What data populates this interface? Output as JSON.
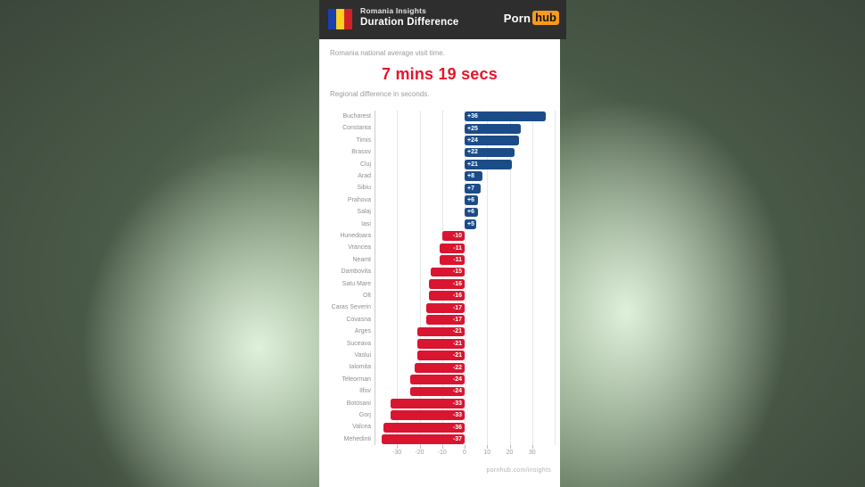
{
  "header": {
    "title_line1": "Romania Insights",
    "title_line2": "Duration Difference",
    "logo": {
      "part1": "Porn",
      "part2": "hub"
    }
  },
  "intro": {
    "line1": "Romania national average visit time.",
    "stat": "7 mins 19 secs"
  },
  "chart_data": {
    "type": "bar",
    "orientation": "horizontal",
    "title": "Regional difference in seconds.",
    "unit": "seconds",
    "categories": [
      "Bucharest",
      "Constanta",
      "Timis",
      "Brasov",
      "Cluj",
      "Arad",
      "Sibiu",
      "Prahova",
      "Salaj",
      "Iasi",
      "Hunedoara",
      "Vrancea",
      "Neamt",
      "Dambovita",
      "Satu Mare",
      "Olt",
      "Caras Severin",
      "Covasna",
      "Arges",
      "Suceava",
      "Vaslui",
      "Ialomita",
      "Teleorman",
      "Ilfov",
      "Botosani",
      "Gorj",
      "Valcea",
      "Mehedinti"
    ],
    "values": [
      36,
      25,
      24,
      22,
      21,
      8,
      7,
      6,
      6,
      5,
      -10,
      -11,
      -11,
      -15,
      -16,
      -16,
      -17,
      -17,
      -21,
      -21,
      -21,
      -22,
      -24,
      -24,
      -33,
      -33,
      -36,
      -37
    ],
    "xlim": [
      -40,
      40
    ],
    "xticks": [
      -30,
      -20,
      -10,
      0,
      10,
      20,
      30
    ],
    "grid": true,
    "legend": "none",
    "positive_color": "#1c4c88",
    "negative_color": "#d9152f"
  },
  "footer": {
    "url": "pornhub.com/insights"
  },
  "colors": {
    "accent_red": "#e8132b",
    "header_bg": "#2e2e2e",
    "logo_orange": "#f99a1c",
    "flag_blue": "#1a3fae",
    "flag_yellow": "#fcd020",
    "flag_red": "#d02127"
  }
}
